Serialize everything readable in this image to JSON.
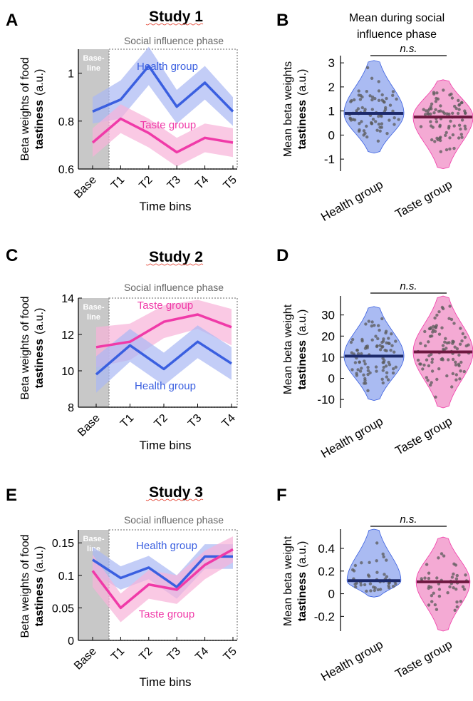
{
  "colors": {
    "health": "#3a5fe0",
    "health_band": "#a9b8f3",
    "health_violin": "#8ea4ee",
    "health_median": "#1d2a6b",
    "taste": "#f03aa8",
    "taste_band": "#f8b2d8",
    "taste_violin": "#f08ec6",
    "taste_median": "#6e1840",
    "baseline_shade": "#c8c8c8",
    "dots": "#5a5a5a",
    "squiggle": "#e0301e"
  },
  "shared": {
    "phase_label": "Social influence phase",
    "baseline_label": [
      "Base-",
      "line"
    ],
    "xlabel": "Time bins",
    "ylabel_line1": "Beta weights of food",
    "ylabel_line2_bold": "tastiness",
    "ylabel_line2_unit": "(a.u.)",
    "violin_ylabel_line2_bold": "tastiness",
    "violin_ylabel_line2_unit": "(a.u.)",
    "ns_label": "n.s.",
    "violin_categories": [
      "Health group",
      "Taste group"
    ]
  },
  "panels": {
    "A": {
      "letter": "A",
      "title": "Study 1"
    },
    "B": {
      "letter": "B",
      "title_lines": [
        "Mean during social",
        "influence phase"
      ],
      "ylabel_line1": "Mean beta weights"
    },
    "C": {
      "letter": "C",
      "title": "Study 2"
    },
    "D": {
      "letter": "D",
      "ylabel_line1": "Mean beta weight"
    },
    "E": {
      "letter": "E",
      "title": "Study 3"
    },
    "F": {
      "letter": "F",
      "ylabel_line1": "Mean beta weight"
    }
  },
  "chart_data": [
    {
      "panel": "A",
      "type": "line",
      "categories": [
        "Base",
        "T1",
        "T2",
        "T3",
        "T4",
        "T5"
      ],
      "xlabel": "Time bins",
      "ylabel": "Beta weights of food tastiness (a.u.)",
      "ylim": [
        0.6,
        1.1
      ],
      "yticks": [
        0.6,
        0.8,
        1
      ],
      "series": [
        {
          "name": "Health group",
          "values": [
            0.84,
            0.89,
            1.03,
            0.86,
            0.96,
            0.84
          ],
          "lower": [
            0.79,
            0.81,
            0.95,
            0.79,
            0.89,
            0.78
          ],
          "upper": [
            0.9,
            0.97,
            1.11,
            0.93,
            1.03,
            0.9
          ]
        },
        {
          "name": "Taste group",
          "values": [
            0.71,
            0.81,
            0.75,
            0.67,
            0.73,
            0.71
          ],
          "lower": [
            0.65,
            0.75,
            0.69,
            0.61,
            0.67,
            0.65
          ],
          "upper": [
            0.77,
            0.87,
            0.81,
            0.73,
            0.79,
            0.77
          ]
        }
      ]
    },
    {
      "panel": "B",
      "type": "violin",
      "categories": [
        "Health group",
        "Taste group"
      ],
      "ylim": [
        -1.5,
        3.3
      ],
      "yticks": [
        -1,
        0,
        1,
        2,
        3
      ],
      "medians": [
        0.9,
        0.75
      ],
      "ranges": [
        [
          -0.75,
          3.1
        ],
        [
          -1.4,
          2.3
        ]
      ],
      "significance": "n.s."
    },
    {
      "panel": "C",
      "type": "line",
      "categories": [
        "Base",
        "T1",
        "T2",
        "T3",
        "T4"
      ],
      "xlabel": "Time bins",
      "ylabel": "Beta weights of food tastiness (a.u.)",
      "ylim": [
        8,
        14
      ],
      "yticks": [
        8,
        10,
        12,
        14
      ],
      "series": [
        {
          "name": "Taste group",
          "values": [
            11.3,
            11.6,
            12.7,
            13.1,
            12.4
          ],
          "lower": [
            10.2,
            10.6,
            11.8,
            12.3,
            11.4
          ],
          "upper": [
            12.4,
            12.6,
            13.6,
            13.9,
            13.4
          ]
        },
        {
          "name": "Health group",
          "values": [
            9.8,
            11.4,
            10.1,
            11.6,
            10.4
          ],
          "lower": [
            8.8,
            10.5,
            9.2,
            10.7,
            9.5
          ],
          "upper": [
            10.8,
            12.3,
            11.0,
            12.5,
            11.3
          ]
        }
      ]
    },
    {
      "panel": "D",
      "type": "violin",
      "categories": [
        "Health group",
        "Taste group"
      ],
      "ylim": [
        -14,
        39
      ],
      "yticks": [
        -10,
        0,
        10,
        20,
        30
      ],
      "medians": [
        10.5,
        12.5
      ],
      "ranges": [
        [
          -10.5,
          34
        ],
        [
          -14,
          39
        ]
      ],
      "significance": "n.s."
    },
    {
      "panel": "E",
      "type": "line",
      "categories": [
        "Base",
        "T1",
        "T2",
        "T3",
        "T4",
        "T5"
      ],
      "xlabel": "Time bins",
      "ylabel": "Beta weights of food tastiness (a.u.)",
      "ylim": [
        0,
        0.17
      ],
      "yticks": [
        0,
        0.05,
        0.1,
        0.15
      ],
      "series": [
        {
          "name": "Health group",
          "values": [
            0.124,
            0.096,
            0.112,
            0.082,
            0.129,
            0.129
          ],
          "lower": [
            0.104,
            0.078,
            0.094,
            0.064,
            0.11,
            0.11
          ],
          "upper": [
            0.144,
            0.114,
            0.13,
            0.1,
            0.148,
            0.148
          ]
        },
        {
          "name": "Taste group",
          "values": [
            0.107,
            0.05,
            0.086,
            0.078,
            0.116,
            0.14
          ],
          "lower": [
            0.082,
            0.028,
            0.064,
            0.056,
            0.094,
            0.12
          ],
          "upper": [
            0.132,
            0.072,
            0.108,
            0.1,
            0.138,
            0.16
          ]
        }
      ]
    },
    {
      "panel": "F",
      "type": "violin",
      "categories": [
        "Health group",
        "Taste group"
      ],
      "ylim": [
        -0.33,
        0.57
      ],
      "yticks": [
        -0.2,
        0,
        0.2,
        0.4
      ],
      "medians": [
        0.115,
        0.105
      ],
      "ranges": [
        [
          -0.03,
          0.57
        ],
        [
          -0.33,
          0.5
        ]
      ],
      "significance": "n.s."
    }
  ]
}
